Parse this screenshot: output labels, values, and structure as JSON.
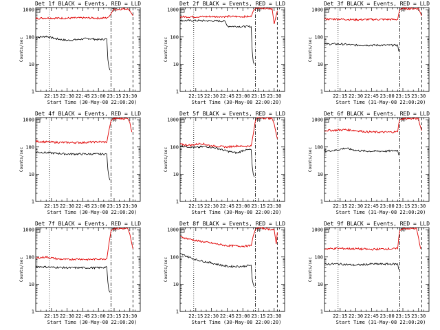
{
  "chart_data": [
    {
      "type": "line",
      "title": "Det 1f BLACK = Events, RED = LLD",
      "xlabel": "Start Time (30-May-08 22:00:20)",
      "ylabel": "Counts/sec",
      "x_ticks": [
        "22:15",
        "22:30",
        "22:45",
        "23:00",
        "23:15",
        "23:30"
      ],
      "x_range": [
        "22:00",
        "23:40"
      ],
      "y_ticks": [
        "1",
        "10",
        "100",
        "1000"
      ],
      "y_scale": "log",
      "ylim": [
        1,
        1200
      ],
      "markers": {
        "dotted": "22:13",
        "dash_dot": "23:12",
        "dashed": "23:33",
        "text": "TF"
      },
      "series": [
        {
          "color": "#000000",
          "x": [
            "22:00",
            "22:10",
            "22:20",
            "22:30",
            "22:40",
            "22:50",
            "23:00",
            "23:08",
            "23:09",
            "23:10",
            "23:11"
          ],
          "values": [
            95,
            105,
            85,
            75,
            80,
            88,
            80,
            85,
            15,
            8,
            6
          ]
        },
        {
          "color": "#e00000",
          "x": [
            "22:00",
            "22:10",
            "22:20",
            "22:30",
            "22:40",
            "22:50",
            "23:00",
            "23:08",
            "23:10",
            "23:12",
            "23:14",
            "23:28",
            "23:30",
            "23:32",
            "23:33"
          ],
          "values": [
            480,
            500,
            490,
            490,
            500,
            500,
            490,
            500,
            550,
            700,
            1000,
            1100,
            900,
            700,
            600
          ]
        }
      ]
    },
    {
      "type": "line",
      "title": "Det 2f BLACK = Events, RED = LLD",
      "xlabel": "Start Time (30-May-08 22:00:20)",
      "ylabel": "Counts/sec",
      "x_ticks": [
        "22:15",
        "22:30",
        "22:45",
        "23:00",
        "23:15",
        "23:30"
      ],
      "x_range": [
        "22:00",
        "23:40"
      ],
      "y_ticks": [
        "1",
        "10",
        "100",
        "1000"
      ],
      "y_scale": "log",
      "ylim": [
        1,
        1200
      ],
      "markers": {
        "dotted": "22:13",
        "dash_dot": "23:12",
        "dashed": "23:33",
        "text": "TF"
      },
      "series": [
        {
          "color": "#000000",
          "x": [
            "22:00",
            "22:15",
            "22:30",
            "22:43",
            "22:45",
            "23:00",
            "23:08",
            "23:09",
            "23:10",
            "23:11"
          ],
          "values": [
            400,
            400,
            390,
            380,
            250,
            240,
            240,
            30,
            12,
            10
          ]
        },
        {
          "color": "#e00000",
          "x": [
            "22:00",
            "22:15",
            "22:30",
            "22:45",
            "23:00",
            "23:08",
            "23:10",
            "23:12",
            "23:14",
            "23:28",
            "23:30",
            "23:33"
          ],
          "values": [
            550,
            550,
            560,
            560,
            560,
            560,
            900,
            1100,
            1200,
            1100,
            300,
            900
          ]
        }
      ]
    },
    {
      "type": "line",
      "title": "Det 3f BLACK = Events, RED = LLD",
      "xlabel": "Start Time (31-May-08 22:00:20)",
      "ylabel": "Counts/sec",
      "x_ticks": [
        "22:15",
        "22:30",
        "22:45",
        "23:00",
        "23:15",
        "23:30"
      ],
      "x_range": [
        "22:00",
        "23:40"
      ],
      "y_ticks": [
        "1",
        "10",
        "100",
        "1000"
      ],
      "y_scale": "log",
      "ylim": [
        1,
        1200
      ],
      "markers": {
        "dotted": "22:13",
        "dash_dot": "23:12",
        "dashed": "23:33",
        "text": "TF"
      },
      "series": [
        {
          "color": "#000000",
          "x": [
            "22:00",
            "22:15",
            "22:30",
            "22:45",
            "23:00",
            "23:10",
            "23:11"
          ],
          "values": [
            55,
            55,
            50,
            50,
            50,
            50,
            30
          ]
        },
        {
          "color": "#e00000",
          "x": [
            "22:00",
            "22:15",
            "22:30",
            "22:45",
            "23:00",
            "23:10",
            "23:11",
            "23:12",
            "23:14",
            "23:30",
            "23:31",
            "23:33"
          ],
          "values": [
            450,
            450,
            430,
            440,
            440,
            440,
            700,
            1000,
            1100,
            1100,
            900,
            600
          ]
        }
      ]
    },
    {
      "type": "line",
      "title": "Det 4f BLACK = Events, RED = LLD",
      "xlabel": "Start Time (30-May-08 22:00:20)",
      "ylabel": "Counts/sec",
      "x_ticks": [
        "22:15",
        "22:30",
        "22:45",
        "23:00",
        "23:15",
        "23:30"
      ],
      "x_range": [
        "22:00",
        "23:40"
      ],
      "y_ticks": [
        "1",
        "10",
        "100",
        "1000"
      ],
      "y_scale": "log",
      "ylim": [
        1,
        1200
      ],
      "markers": {
        "dotted": "22:13",
        "dash_dot": "23:12",
        "dashed": "23:33",
        "text": "TF"
      },
      "series": [
        {
          "color": "#000000",
          "x": [
            "22:00",
            "22:15",
            "22:30",
            "22:45",
            "23:00",
            "23:08",
            "23:09",
            "23:10",
            "23:11"
          ],
          "values": [
            65,
            60,
            55,
            55,
            55,
            55,
            15,
            8,
            6
          ]
        },
        {
          "color": "#e00000",
          "x": [
            "22:00",
            "22:15",
            "22:30",
            "22:45",
            "23:00",
            "23:08",
            "23:10",
            "23:12",
            "23:14",
            "23:28",
            "23:30",
            "23:31",
            "23:32"
          ],
          "values": [
            160,
            150,
            145,
            145,
            155,
            150,
            400,
            900,
            1100,
            1100,
            800,
            500,
            350
          ]
        }
      ]
    },
    {
      "type": "line",
      "title": "Det 5f BLACK = Events, RED = LLD",
      "xlabel": "Start Time (30-May-08 22:00:20)",
      "ylabel": "Counts/sec",
      "x_ticks": [
        "22:15",
        "22:30",
        "22:45",
        "23:00",
        "23:15",
        "23:30"
      ],
      "x_range": [
        "22:00",
        "23:40"
      ],
      "y_ticks": [
        "1",
        "10",
        "100",
        "1000"
      ],
      "y_scale": "log",
      "ylim": [
        1,
        1200
      ],
      "markers": {
        "dotted": "22:13",
        "dash_dot": "23:12",
        "dashed": "23:33",
        "text": "TF"
      },
      "series": [
        {
          "color": "#000000",
          "x": [
            "22:00",
            "22:15",
            "22:25",
            "22:35",
            "22:45",
            "22:55",
            "23:00",
            "23:08",
            "23:09",
            "23:10",
            "23:11"
          ],
          "values": [
            110,
            95,
            105,
            90,
            70,
            60,
            75,
            80,
            20,
            10,
            8
          ]
        },
        {
          "color": "#e00000",
          "x": [
            "22:00",
            "22:10",
            "22:20",
            "22:30",
            "22:45",
            "22:55",
            "23:00",
            "23:08",
            "23:10",
            "23:12",
            "23:14",
            "23:28",
            "23:30",
            "23:32",
            "23:33"
          ],
          "values": [
            125,
            115,
            135,
            110,
            100,
            110,
            105,
            110,
            300,
            900,
            1200,
            1100,
            700,
            300,
            200
          ]
        }
      ]
    },
    {
      "type": "line",
      "title": "Det 6f BLACK = Events, RED = LLD",
      "xlabel": "Start Time (31-May-08 22:00:20)",
      "ylabel": "Counts/sec",
      "x_ticks": [
        "22:15",
        "22:30",
        "22:45",
        "23:00",
        "23:15",
        "23:30"
      ],
      "x_range": [
        "22:00",
        "23:40"
      ],
      "y_ticks": [
        "1",
        "10",
        "100",
        "1000"
      ],
      "y_scale": "log",
      "ylim": [
        1,
        1200
      ],
      "markers": {
        "dotted": "22:13",
        "dash_dot": "23:12",
        "dashed": "23:33",
        "text": "TF"
      },
      "series": [
        {
          "color": "#000000",
          "x": [
            "22:00",
            "22:10",
            "22:20",
            "22:30",
            "22:40",
            "22:50",
            "23:00",
            "23:10",
            "23:11"
          ],
          "values": [
            70,
            75,
            90,
            75,
            70,
            70,
            70,
            75,
            50
          ]
        },
        {
          "color": "#e00000",
          "x": [
            "22:00",
            "22:10",
            "22:20",
            "22:30",
            "22:40",
            "22:50",
            "23:00",
            "23:10",
            "23:11",
            "23:12",
            "23:14",
            "23:30",
            "23:31",
            "23:33"
          ],
          "values": [
            400,
            410,
            430,
            400,
            360,
            350,
            350,
            360,
            700,
            1000,
            1100,
            1100,
            700,
            400
          ]
        }
      ]
    },
    {
      "type": "line",
      "title": "Det 7f BLACK = Events, RED = LLD",
      "xlabel": "Start Time (30-May-08 22:00:20)",
      "ylabel": "Counts/sec",
      "x_ticks": [
        "22:15",
        "22:30",
        "22:45",
        "23:00",
        "23:15",
        "23:30"
      ],
      "x_range": [
        "22:00",
        "23:40"
      ],
      "y_ticks": [
        "1",
        "10",
        "100",
        "1000"
      ],
      "y_scale": "log",
      "ylim": [
        1,
        1200
      ],
      "markers": {
        "dotted": "22:13",
        "dash_dot": "23:12",
        "dashed": "23:33",
        "text": "TF"
      },
      "series": [
        {
          "color": "#000000",
          "x": [
            "22:00",
            "22:15",
            "22:30",
            "22:45",
            "23:00",
            "23:08",
            "23:09",
            "23:10",
            "23:11"
          ],
          "values": [
            45,
            42,
            40,
            40,
            40,
            42,
            12,
            6,
            5
          ]
        },
        {
          "color": "#e00000",
          "x": [
            "22:00",
            "22:10",
            "22:20",
            "22:30",
            "22:40",
            "22:50",
            "23:00",
            "23:08",
            "23:10",
            "23:12",
            "23:14",
            "23:28",
            "23:30",
            "23:32",
            "23:33"
          ],
          "values": [
            90,
            100,
            85,
            80,
            85,
            80,
            85,
            85,
            300,
            900,
            1100,
            1100,
            700,
            300,
            200
          ]
        }
      ]
    },
    {
      "type": "line",
      "title": "Det 8f BLACK = Events, RED = LLD",
      "xlabel": "Start Time (30-May-08 22:00:20)",
      "ylabel": "Counts/sec",
      "x_ticks": [
        "22:15",
        "22:30",
        "22:45",
        "23:00",
        "23:15",
        "23:30"
      ],
      "x_range": [
        "22:00",
        "23:40"
      ],
      "y_ticks": [
        "1",
        "10",
        "100",
        "1000"
      ],
      "y_scale": "log",
      "ylim": [
        1,
        1200
      ],
      "markers": {
        "dotted": "22:13",
        "dash_dot": "23:12",
        "dashed": "23:33",
        "text": "TF"
      },
      "series": [
        {
          "color": "#000000",
          "x": [
            "22:00",
            "22:15",
            "22:30",
            "22:45",
            "23:00",
            "23:08",
            "23:09",
            "23:10",
            "23:11"
          ],
          "values": [
            130,
            80,
            60,
            45,
            45,
            50,
            15,
            10,
            8
          ]
        },
        {
          "color": "#e00000",
          "x": [
            "22:00",
            "22:15",
            "22:30",
            "22:45",
            "23:00",
            "23:08",
            "23:10",
            "23:12",
            "23:14",
            "23:30",
            "23:32",
            "23:33"
          ],
          "values": [
            550,
            400,
            320,
            260,
            250,
            260,
            600,
            1000,
            1200,
            1000,
            300,
            800
          ]
        }
      ]
    },
    {
      "type": "line",
      "title": "Det 9f BLACK = Events, RED = LLD",
      "xlabel": "Start Time (31-May-08 22:00:20)",
      "ylabel": "Counts/sec",
      "x_ticks": [
        "22:15",
        "22:30",
        "22:45",
        "23:00",
        "23:15",
        "23:30"
      ],
      "x_range": [
        "22:00",
        "23:40"
      ],
      "y_ticks": [
        "1",
        "10",
        "100",
        "1000"
      ],
      "y_scale": "log",
      "ylim": [
        1,
        1200
      ],
      "markers": {
        "dotted": "22:13",
        "dash_dot": "23:12",
        "dashed": "23:33",
        "text": "TF"
      },
      "series": [
        {
          "color": "#000000",
          "x": [
            "22:00",
            "22:15",
            "22:30",
            "22:45",
            "23:00",
            "23:10",
            "23:11"
          ],
          "values": [
            55,
            55,
            50,
            55,
            55,
            55,
            35
          ]
        },
        {
          "color": "#e00000",
          "x": [
            "22:00",
            "22:15",
            "22:30",
            "22:45",
            "23:00",
            "23:10",
            "23:11",
            "23:12",
            "23:14",
            "23:28",
            "23:30",
            "23:31",
            "23:32"
          ],
          "values": [
            200,
            205,
            200,
            190,
            200,
            200,
            500,
            900,
            1100,
            1100,
            500,
            300,
            200
          ]
        }
      ]
    }
  ]
}
